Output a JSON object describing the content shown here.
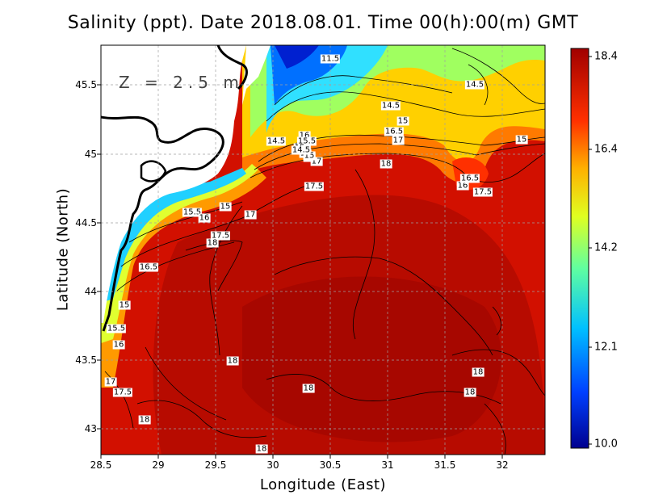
{
  "title": "Salinity (ppt). Date 2018.08.01. Time 00(h):00(m) GMT",
  "depth_label": "Z = 2.5 m",
  "axes": {
    "xlabel": "Longitude (East)",
    "ylabel": "Latitude (North)",
    "xticks": [
      "28.5",
      "29",
      "29.5",
      "30",
      "30.5",
      "31",
      "31.5",
      "32"
    ],
    "yticks": [
      "45.5",
      "45",
      "44.5",
      "44",
      "43.5",
      "43"
    ]
  },
  "colorbar": {
    "ticks": [
      "18.4",
      "16.4",
      "14.2",
      "12.1",
      "10.0"
    ],
    "colors": [
      "#00008f",
      "#0040ff",
      "#00c0ff",
      "#60ffa0",
      "#e0ff20",
      "#ffb000",
      "#ff3000",
      "#a00000"
    ]
  },
  "contour_labels": [
    {
      "text": "11.5"
    },
    {
      "text": "14.5"
    },
    {
      "text": "14.5"
    },
    {
      "text": "15"
    },
    {
      "text": "16.5"
    },
    {
      "text": "17"
    },
    {
      "text": "15"
    },
    {
      "text": "18"
    },
    {
      "text": "16"
    },
    {
      "text": "15.5"
    },
    {
      "text": "16"
    },
    {
      "text": "17"
    },
    {
      "text": "17.5"
    },
    {
      "text": "14.5"
    },
    {
      "text": "15"
    },
    {
      "text": "16"
    },
    {
      "text": "15"
    },
    {
      "text": "14.5"
    },
    {
      "text": "16"
    },
    {
      "text": "16.5"
    },
    {
      "text": "17.5"
    },
    {
      "text": "15.5"
    },
    {
      "text": "16"
    },
    {
      "text": "15"
    },
    {
      "text": "17"
    },
    {
      "text": "17.5"
    },
    {
      "text": "18"
    },
    {
      "text": "16.5"
    },
    {
      "text": "15"
    },
    {
      "text": "15.5"
    },
    {
      "text": "16"
    },
    {
      "text": "18"
    },
    {
      "text": "17"
    },
    {
      "text": "17.5"
    },
    {
      "text": "18"
    },
    {
      "text": "18"
    },
    {
      "text": "18"
    },
    {
      "text": "18"
    },
    {
      "text": "18"
    }
  ]
}
